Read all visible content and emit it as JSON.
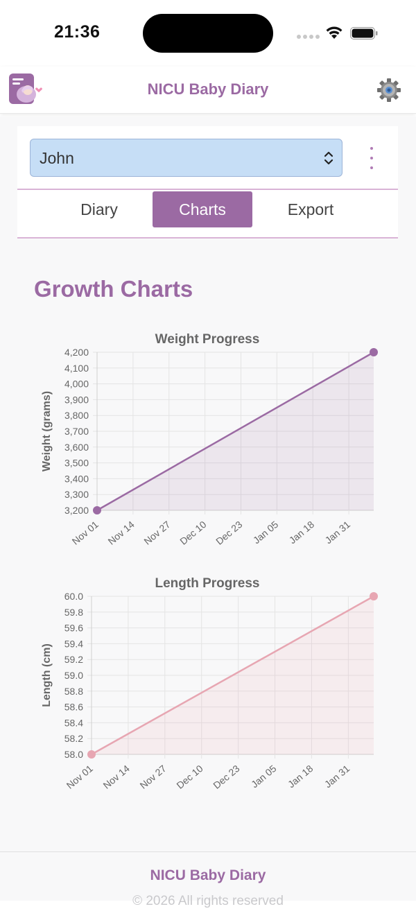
{
  "status_bar": {
    "time": "21:36"
  },
  "header": {
    "title": "NICU Baby Diary"
  },
  "baby_selector": {
    "value": "John"
  },
  "tabs": [
    {
      "label": "Diary",
      "active": false
    },
    {
      "label": "Charts",
      "active": true
    },
    {
      "label": "Export",
      "active": false
    }
  ],
  "page": {
    "title": "Growth Charts"
  },
  "colors": {
    "accent": "#9b6aa3",
    "weight_series": "#9b6aa3",
    "length_series": "#e7a6b2",
    "select_bg": "#c6def6"
  },
  "chart_data": [
    {
      "type": "area",
      "title": "Weight Progress",
      "ylabel": "Weight (grams)",
      "xlabel": "",
      "x_tick_labels": [
        "Nov 01",
        "Nov 14",
        "Nov 27",
        "Dec 10",
        "Dec 23",
        "Jan 05",
        "Jan 18",
        "Jan 31"
      ],
      "y_tick_labels": [
        "3,200",
        "3,300",
        "3,400",
        "3,500",
        "3,600",
        "3,700",
        "3,800",
        "3,900",
        "4,000",
        "4,100",
        "4,200"
      ],
      "ylim": [
        3200,
        4200
      ],
      "grid": true,
      "series": [
        {
          "points": [
            {
              "x": "Nov 01",
              "y": 3200
            },
            {
              "x": "Feb 09",
              "y": 4200
            }
          ]
        }
      ]
    },
    {
      "type": "area",
      "title": "Length Progress",
      "ylabel": "Length (cm)",
      "xlabel": "",
      "x_tick_labels": [
        "Nov 01",
        "Nov 14",
        "Nov 27",
        "Dec 10",
        "Dec 23",
        "Jan 05",
        "Jan 18",
        "Jan 31"
      ],
      "y_tick_labels": [
        "58.0",
        "58.2",
        "58.4",
        "58.6",
        "58.8",
        "59.0",
        "59.2",
        "59.4",
        "59.6",
        "59.8",
        "60.0"
      ],
      "ylim": [
        58.0,
        60.0
      ],
      "grid": true,
      "series": [
        {
          "points": [
            {
              "x": "Nov 01",
              "y": 58.0
            },
            {
              "x": "Feb 09",
              "y": 60.0
            }
          ]
        }
      ]
    }
  ],
  "footer": {
    "title": "NICU Baby Diary",
    "copyright": "© 2026 All rights reserved"
  }
}
